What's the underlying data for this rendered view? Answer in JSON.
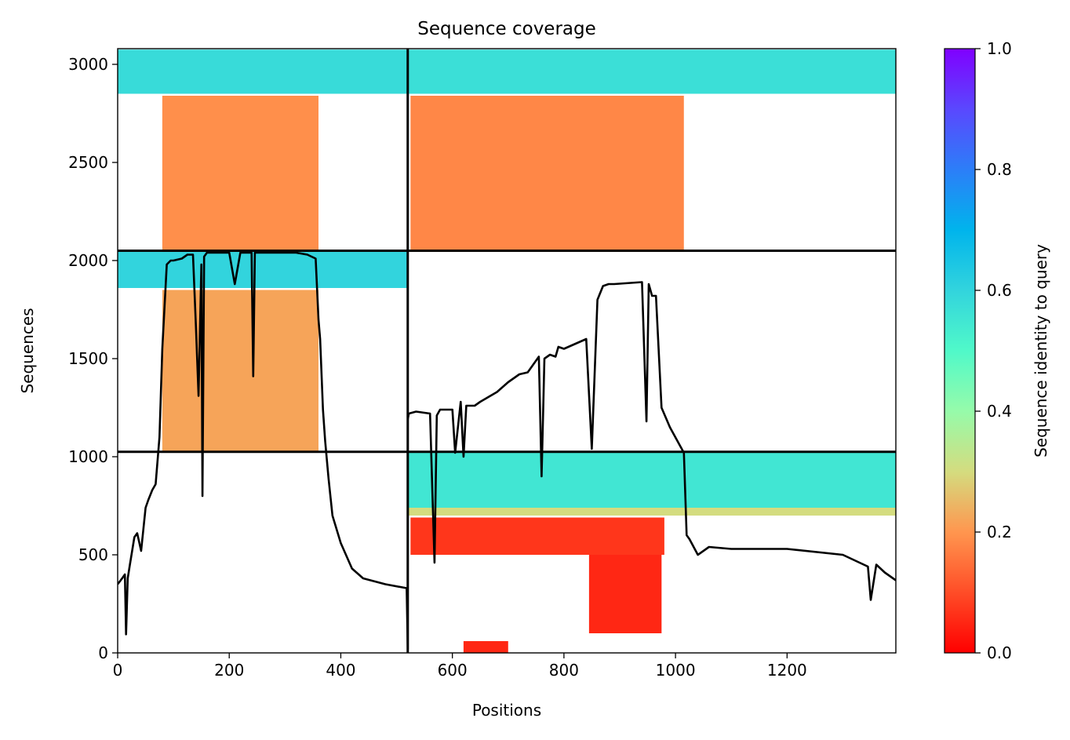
{
  "chart_data": {
    "type": "heatmap",
    "title": "Sequence coverage",
    "xlabel": "Positions",
    "ylabel": "Sequences",
    "xlim": [
      0,
      1395
    ],
    "ylim": [
      0,
      3080
    ],
    "x_ticks": [
      0,
      200,
      400,
      600,
      800,
      1000,
      1200
    ],
    "y_ticks": [
      0,
      500,
      1000,
      1500,
      2000,
      2500,
      3000
    ],
    "grid": false,
    "colorbar": {
      "label": "Sequence identity to query",
      "colormap": "rainbow_r",
      "range": [
        0,
        1
      ],
      "ticks": [
        "0.0",
        "0.2",
        "0.4",
        "0.6",
        "0.8",
        "1.0"
      ],
      "stops": [
        {
          "v": 0.0,
          "color": "#ff0000"
        },
        {
          "v": 0.1,
          "color": "#ff4d27"
        },
        {
          "v": 0.2,
          "color": "#ff964f"
        },
        {
          "v": 0.3,
          "color": "#d4dc7f"
        },
        {
          "v": 0.4,
          "color": "#96fbaa"
        },
        {
          "v": 0.5,
          "color": "#50f9c9"
        },
        {
          "v": 0.6,
          "color": "#32d4dd"
        },
        {
          "v": 0.7,
          "color": "#00b4ec"
        },
        {
          "v": 0.8,
          "color": "#2c7ef8"
        },
        {
          "v": 0.9,
          "color": "#5a48fe"
        },
        {
          "v": 1.0,
          "color": "#8000ff"
        }
      ]
    },
    "block_dividers": {
      "x": [
        520
      ],
      "y": [
        1025,
        2050
      ]
    },
    "coverage_blocks": [
      {
        "x": [
          0,
          520
        ],
        "y": [
          2850,
          3075
        ],
        "identity": 0.58
      },
      {
        "x": [
          520,
          1395
        ],
        "y": [
          2850,
          3075
        ],
        "identity": 0.57
      },
      {
        "x": [
          80,
          360
        ],
        "y": [
          2055,
          2840
        ],
        "identity": 0.19
      },
      {
        "x": [
          525,
          1015
        ],
        "y": [
          2055,
          2840
        ],
        "identity": 0.18
      },
      {
        "x": [
          0,
          520
        ],
        "y": [
          1860,
          2045
        ],
        "identity": 0.6
      },
      {
        "x": [
          80,
          360
        ],
        "y": [
          1030,
          1850
        ],
        "identity": 0.22
      },
      {
        "x": [
          520,
          1395
        ],
        "y": [
          740,
          1020
        ],
        "identity": 0.55
      },
      {
        "x": [
          520,
          1395
        ],
        "y": [
          700,
          740
        ],
        "identity": 0.3
      },
      {
        "x": [
          525,
          980
        ],
        "y": [
          500,
          690
        ],
        "identity": 0.07
      },
      {
        "x": [
          845,
          975
        ],
        "y": [
          100,
          500
        ],
        "identity": 0.05
      },
      {
        "x": [
          620,
          700
        ],
        "y": [
          0,
          60
        ],
        "identity": 0.05
      }
    ],
    "series": [
      {
        "x": [
          0,
          8,
          13,
          15,
          18,
          22,
          30,
          35,
          42,
          50,
          55,
          62,
          68,
          75,
          80,
          88,
          95,
          100,
          115,
          125,
          135,
          140,
          145,
          150,
          152,
          155,
          160,
          180,
          200,
          210,
          220,
          230,
          240,
          243,
          246,
          260,
          280,
          300,
          320,
          340,
          355,
          360,
          363,
          368,
          372,
          378,
          385,
          400,
          420,
          440,
          480,
          518,
          520,
          520,
          522,
          535,
          560,
          568,
          572,
          578,
          582,
          600,
          605,
          615,
          620,
          625,
          640,
          650,
          680,
          700,
          720,
          735,
          755,
          760,
          765,
          775,
          785,
          790,
          800,
          840,
          850,
          860,
          870,
          880,
          890,
          940,
          948,
          952,
          958,
          965,
          975,
          990,
          1015,
          1020,
          1025,
          1040,
          1060,
          1100,
          1200,
          1300,
          1345,
          1350,
          1360,
          1375,
          1395
        ],
        "y": [
          350,
          380,
          400,
          95,
          380,
          450,
          590,
          610,
          520,
          740,
          780,
          830,
          860,
          1100,
          1550,
          1980,
          2000,
          2000,
          2010,
          2030,
          2030,
          1680,
          1310,
          1980,
          800,
          2020,
          2040,
          2040,
          2040,
          1880,
          2040,
          2040,
          2040,
          1410,
          2040,
          2040,
          2040,
          2040,
          2040,
          2030,
          2010,
          1700,
          1600,
          1240,
          1080,
          890,
          700,
          560,
          430,
          380,
          350,
          330,
          20,
          1190,
          1220,
          1230,
          1220,
          460,
          1210,
          1240,
          1240,
          1240,
          1020,
          1280,
          1000,
          1260,
          1260,
          1280,
          1330,
          1380,
          1420,
          1430,
          1510,
          900,
          1500,
          1520,
          1510,
          1560,
          1550,
          1600,
          1040,
          1800,
          1870,
          1880,
          1880,
          1890,
          1180,
          1880,
          1820,
          1820,
          1250,
          1150,
          1020,
          600,
          580,
          500,
          540,
          530,
          530,
          500,
          440,
          270,
          450,
          410,
          370
        ],
        "color": "#000000"
      }
    ]
  }
}
